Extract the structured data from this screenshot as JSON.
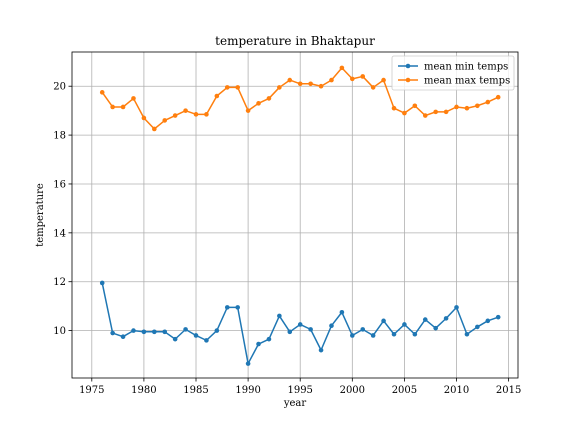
{
  "chart_data": {
    "type": "line",
    "title": "temperature in Bhaktapur",
    "xlabel": "year",
    "ylabel": "temperature",
    "xlim": [
      1973.1,
      2015.9
    ],
    "ylim": [
      8.06,
      21.4
    ],
    "xticks": [
      1975,
      1980,
      1985,
      1990,
      1995,
      2000,
      2005,
      2010,
      2015
    ],
    "yticks": [
      10,
      12,
      14,
      16,
      18,
      20
    ],
    "grid": true,
    "legend_position": "top-right",
    "x": [
      1976,
      1977,
      1978,
      1979,
      1980,
      1981,
      1982,
      1983,
      1984,
      1985,
      1986,
      1987,
      1988,
      1989,
      1990,
      1991,
      1992,
      1993,
      1994,
      1995,
      1996,
      1997,
      1998,
      1999,
      2000,
      2001,
      2002,
      2003,
      2004,
      2005,
      2006,
      2007,
      2008,
      2009,
      2010,
      2011,
      2012,
      2013,
      2014
    ],
    "series": [
      {
        "name": "mean min temps",
        "color": "#1f77b4",
        "values": [
          11.95,
          9.9,
          9.75,
          10.0,
          9.95,
          9.95,
          9.95,
          9.65,
          10.05,
          9.8,
          9.6,
          10.0,
          10.95,
          10.95,
          8.65,
          9.45,
          9.65,
          10.6,
          9.95,
          10.25,
          10.05,
          9.2,
          10.2,
          10.75,
          9.8,
          10.05,
          9.8,
          10.4,
          9.85,
          10.25,
          9.85,
          10.45,
          10.1,
          10.5,
          10.95,
          9.85,
          10.15,
          10.4,
          10.55
        ]
      },
      {
        "name": "mean max temps",
        "color": "#ff7f0e",
        "values": [
          19.75,
          19.15,
          19.15,
          19.5,
          18.7,
          18.25,
          18.6,
          18.8,
          19.0,
          18.85,
          18.85,
          19.6,
          19.95,
          19.95,
          19.0,
          19.3,
          19.5,
          19.95,
          20.25,
          20.1,
          20.1,
          20.0,
          20.25,
          20.75,
          20.3,
          20.4,
          19.95,
          20.25,
          19.1,
          18.9,
          19.2,
          18.8,
          18.95,
          18.95,
          19.15,
          19.1,
          19.2,
          19.35,
          19.55
        ]
      }
    ]
  }
}
